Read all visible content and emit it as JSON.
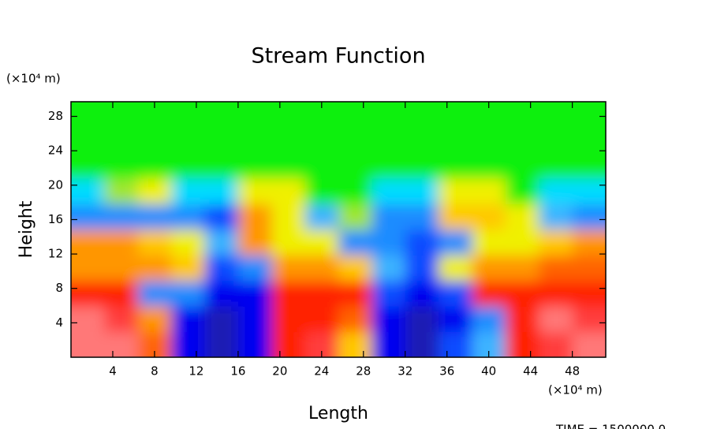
{
  "chart_data": {
    "type": "contour",
    "title": "Stream Function",
    "x_label": "Length",
    "y_label": "Height",
    "x_unit": "(×10⁴ m)",
    "y_unit": "(×10⁴ m)",
    "annotation": "TIME = 1500000.0",
    "xlim": [
      0,
      51.2
    ],
    "ylim": [
      0,
      29.7
    ],
    "xticks": [
      4,
      8,
      12,
      16,
      20,
      24,
      28,
      32,
      36,
      40,
      44,
      48
    ],
    "yticks": [
      4,
      8,
      12,
      16,
      20,
      24,
      28
    ],
    "colors": [
      "#50288c",
      "#1e1eb4",
      "#0000f0",
      "#0a4bff",
      "#1e8cff",
      "#3cb4ff",
      "#00dcff",
      "#10f010",
      "#a0e632",
      "#f0f000",
      "#ffc800",
      "#ff9600",
      "#ff6400",
      "#ff2000",
      "#ff3c3c",
      "#ff7878"
    ],
    "z": [
      [
        15,
        15,
        12,
        2,
        1,
        2,
        13,
        14,
        10,
        2,
        1,
        3,
        5,
        13,
        14,
        15
      ],
      [
        15,
        14,
        11,
        2,
        1,
        2,
        13,
        13,
        12,
        2,
        1,
        2,
        4,
        13,
        15,
        14
      ],
      [
        13,
        13,
        4,
        4,
        2,
        2,
        13,
        13,
        13,
        3,
        2,
        3,
        13,
        13,
        13,
        13
      ],
      [
        11,
        11,
        11,
        10,
        3,
        4,
        11,
        11,
        10,
        5,
        3,
        9,
        11,
        11,
        12,
        12
      ],
      [
        11,
        11,
        10,
        9,
        5,
        11,
        9,
        9,
        4,
        4,
        3,
        4,
        9,
        9,
        10,
        11
      ],
      [
        4,
        4,
        4,
        4,
        3,
        11,
        9,
        5,
        8,
        4,
        4,
        10,
        10,
        9,
        5,
        4
      ],
      [
        6,
        8,
        9,
        6,
        6,
        9,
        9,
        7,
        7,
        6,
        6,
        9,
        9,
        7,
        6,
        6
      ],
      [
        7,
        7,
        7,
        7,
        7,
        7,
        7,
        7,
        7,
        7,
        7,
        7,
        7,
        7,
        7,
        7
      ],
      [
        7,
        7,
        7,
        7,
        7,
        7,
        7,
        7,
        7,
        7,
        7,
        7,
        7,
        7,
        7,
        7
      ],
      [
        7,
        7,
        7,
        7,
        7,
        7,
        7,
        7,
        7,
        7,
        7,
        7,
        7,
        7,
        7,
        7
      ]
    ]
  }
}
